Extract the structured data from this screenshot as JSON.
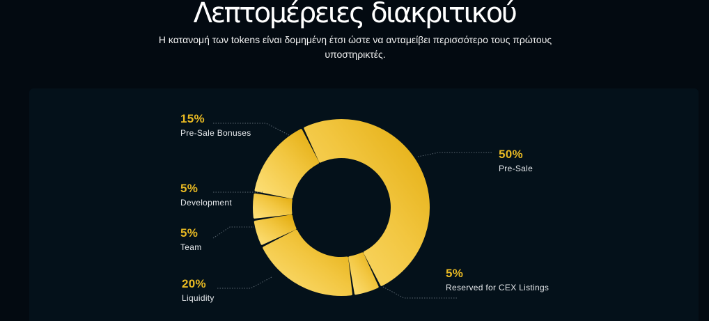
{
  "header": {
    "title": "Λεπτομέρειες διακριτικού",
    "subtitle": "Η κατανομή των tokens είναι δομημένη έτσι ώστε να ανταμείβει περισσότερο τους πρώτους υποστηρικτές."
  },
  "colors": {
    "background": "#030a11",
    "card": "#04111a",
    "accent": "#e8b923",
    "segment_light": "#fdd86a",
    "segment_dark": "#e6b112"
  },
  "chart_data": {
    "type": "pie",
    "variant": "donut",
    "title": "Λεπτομέρειες διακριτικού",
    "categories": [
      "Pre-Sale",
      "Reserved for CEX Listings",
      "Liquidity",
      "Team",
      "Development",
      "Pre-Sale Bonuses"
    ],
    "values": [
      50,
      5,
      20,
      5,
      5,
      15
    ],
    "unit": "%",
    "legend_position": "callouts"
  },
  "labels": {
    "presale_bonuses": {
      "pct": "15%",
      "name": "Pre-Sale Bonuses"
    },
    "development": {
      "pct": "5%",
      "name": "Development"
    },
    "team": {
      "pct": "5%",
      "name": "Team"
    },
    "liquidity": {
      "pct": "20%",
      "name": "Liquidity"
    },
    "presale": {
      "pct": "50%",
      "name": "Pre-Sale"
    },
    "cex": {
      "pct": "5%",
      "name": "Reserved for CEX Listings"
    }
  }
}
